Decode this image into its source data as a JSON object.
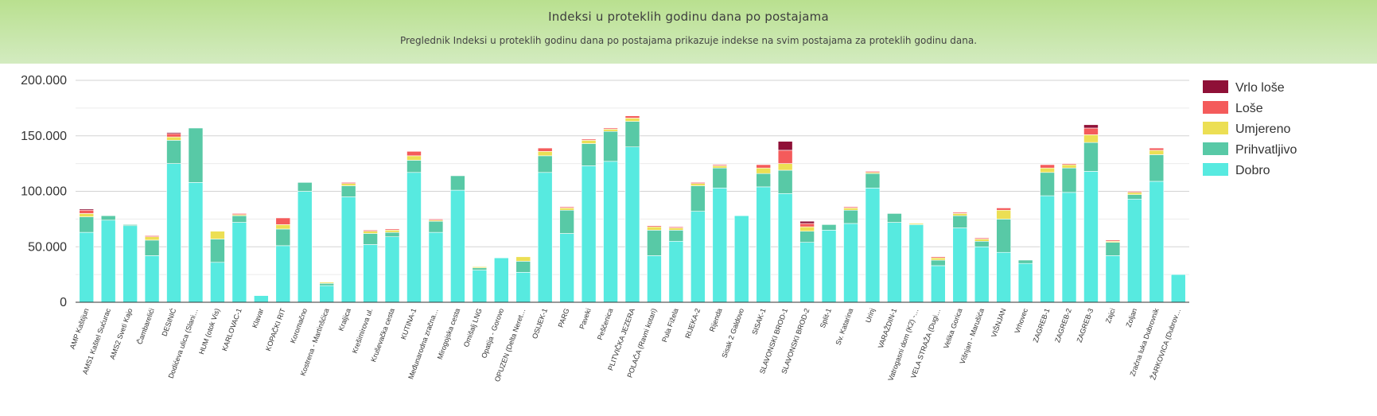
{
  "header": {
    "title": "Indeksi u proteklih godinu dana po postajama",
    "subtitle": "Preglednik Indeksi u proteklih godinu dana po postajama prikazuje indekse na svim postajama za proteklih godinu dana."
  },
  "chart_data": {
    "type": "bar",
    "stacked": true,
    "title": "",
    "xlabel": "",
    "ylabel": "",
    "ylim": [
      0,
      200000
    ],
    "yticks": [
      0,
      50000,
      100000,
      150000,
      200000
    ],
    "ytick_labels": [
      "0",
      "50.000",
      "100.000",
      "150.000",
      "200.000"
    ],
    "grid": true,
    "legend_position": "right",
    "categories": [
      "AMP Kaštijun",
      "AMS1 Kaštel Sućurac",
      "AMS2 Sveti Kajo",
      "Čambarelići",
      "DESINIĆ",
      "Dodićeva ulica (Slani…",
      "HUM (otok Vis)",
      "KARLOVAC-1",
      "Klavar",
      "KOPAČKI RIT",
      "Koromačno",
      "Kostrena - Martinšćica",
      "Kraljica",
      "Krešimirova ul.",
      "Kruševačka cesta",
      "KUTINA-1",
      "Međunarodna zračna…",
      "Mirogojska cesta",
      "Omišalj LNG",
      "Opatija - Gorovo",
      "OPUZEN (Delta Neret…",
      "OSIJEK-1",
      "PARG",
      "Paveki",
      "Peščenica",
      "PLITVIČKA JEZERA",
      "POLAČA (Ravni kotari)",
      "Pula Fižela",
      "RIJEKA-2",
      "Rijenda",
      "Sisak 2 Galdovo",
      "SISAK-1",
      "SLAVONSKI BROD-1",
      "SLAVONSKI BROD-2",
      "Split-1",
      "Sv. Katarina",
      "Urinj",
      "VARAŽDIN-1",
      "Vatrogasni dom (K2) -…",
      "VELA STRAŽA (Dugi…",
      "Velika Gorica",
      "Višnjan - Marušića",
      "VIŠNJAN",
      "Vrhovec",
      "ZAGREB-1",
      "ZAGREB-2",
      "ZAGREB-3",
      "Zajci",
      "Zoljan",
      "Zračna luka Dubrovnik",
      "ŽARKOVICA (Dubrov…"
    ],
    "series": [
      {
        "name": "Dobro",
        "color": "#57eae0",
        "values": [
          63000,
          74000,
          69000,
          42000,
          125000,
          108000,
          36000,
          72000,
          6000,
          51000,
          100000,
          15000,
          95000,
          52000,
          59000,
          117000,
          63000,
          101000,
          29000,
          40000,
          27000,
          117000,
          62000,
          123000,
          127000,
          140000,
          42000,
          55000,
          82000,
          103000,
          78000,
          104000,
          98000,
          54000,
          65000,
          71000,
          103000,
          72000,
          70000,
          33000,
          67000,
          50000,
          45000,
          35000,
          96000,
          99000,
          118000,
          42000,
          93000,
          109000,
          25000
        ]
      },
      {
        "name": "Prihvatljivo",
        "color": "#58c9a6",
        "values": [
          14000,
          4000,
          1000,
          14000,
          21000,
          49000,
          21000,
          6000,
          0,
          15000,
          8000,
          2000,
          10000,
          10000,
          4000,
          11000,
          10000,
          13000,
          2000,
          0,
          10000,
          15000,
          21000,
          20000,
          27000,
          23000,
          23000,
          10000,
          23000,
          18000,
          0,
          12000,
          21000,
          10000,
          5000,
          12000,
          13000,
          8000,
          0,
          5000,
          11000,
          5000,
          30000,
          3000,
          21000,
          22000,
          26000,
          12000,
          4000,
          24000,
          0
        ]
      },
      {
        "name": "Umjereno",
        "color": "#ecdf54",
        "values": [
          3000,
          0,
          0,
          3000,
          3000,
          0,
          7000,
          1000,
          0,
          4000,
          0,
          1000,
          2000,
          2000,
          2000,
          4000,
          1000,
          0,
          1000,
          0,
          4000,
          4000,
          2000,
          3000,
          2000,
          3000,
          3000,
          2000,
          2000,
          2000,
          0,
          5000,
          6000,
          4000,
          0,
          2000,
          1000,
          0,
          1000,
          2000,
          2000,
          2000,
          8000,
          0,
          4000,
          3000,
          7000,
          1000,
          2000,
          4000,
          0
        ]
      },
      {
        "name": "Loše",
        "color": "#f45b5b",
        "values": [
          3000,
          0,
          0,
          1000,
          3000,
          0,
          0,
          1000,
          0,
          6000,
          0,
          0,
          1000,
          1000,
          1000,
          4000,
          1000,
          0,
          0,
          0,
          0,
          3000,
          1000,
          1000,
          1000,
          2000,
          1000,
          1000,
          1000,
          1000,
          0,
          3000,
          12000,
          3000,
          0,
          1000,
          1000,
          0,
          0,
          1000,
          1000,
          1000,
          2000,
          0,
          3000,
          1000,
          6000,
          1000,
          1000,
          2000,
          0
        ]
      },
      {
        "name": "Vrlo loše",
        "color": "#8f1037",
        "values": [
          1000,
          0,
          0,
          0,
          1000,
          0,
          0,
          0,
          0,
          0,
          0,
          0,
          0,
          0,
          0,
          0,
          0,
          0,
          0,
          0,
          0,
          0,
          0,
          0,
          0,
          0,
          0,
          0,
          0,
          0,
          0,
          0,
          8000,
          2000,
          0,
          0,
          0,
          0,
          0,
          0,
          0,
          0,
          0,
          0,
          0,
          0,
          3000,
          0,
          0,
          0,
          0
        ]
      }
    ]
  }
}
